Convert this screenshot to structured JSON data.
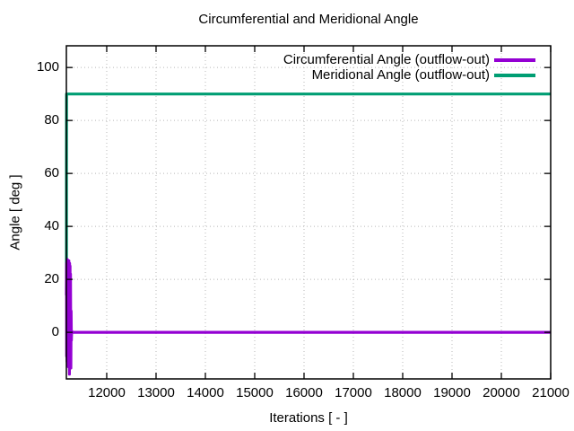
{
  "window": {
    "background": "#ffffff",
    "text_color": "#000000"
  },
  "chart_data": {
    "type": "line",
    "title": "Circumferential and Meridional Angle",
    "xlabel": "Iterations [ - ]",
    "ylabel": "Angle [ deg ]",
    "xlim": [
      11182,
      21000
    ],
    "ylim": [
      -17.6,
      108.2
    ],
    "xticks": [
      12000,
      13000,
      14000,
      15000,
      16000,
      17000,
      18000,
      19000,
      20000,
      21000
    ],
    "yticks": [
      0,
      20,
      40,
      60,
      80,
      100
    ],
    "grid": true,
    "grid_style": "dotted",
    "grid_color": "#b8b8b8",
    "border_color": "#000000",
    "legend_position": "top-right-inside",
    "series": [
      {
        "name": "Circumferential Angle (outflow-out)",
        "color": "#9400d3",
        "summary": "oscillates between about +27.5 and -15.8 deg during iterations ~11182-11290, then constant at 0 deg until 21000",
        "points": [
          [
            11182,
            14
          ],
          [
            11185,
            26
          ],
          [
            11188,
            -9
          ],
          [
            11192,
            27
          ],
          [
            11196,
            -11
          ],
          [
            11200,
            27.5
          ],
          [
            11204,
            -12
          ],
          [
            11208,
            27
          ],
          [
            11212,
            -12.5
          ],
          [
            11216,
            27
          ],
          [
            11220,
            -13
          ],
          [
            11224,
            26.5
          ],
          [
            11228,
            -12
          ],
          [
            11232,
            27
          ],
          [
            11236,
            -13
          ],
          [
            11240,
            26
          ],
          [
            11244,
            -15.8
          ],
          [
            11248,
            26
          ],
          [
            11252,
            -13
          ],
          [
            11256,
            25
          ],
          [
            11260,
            -12
          ],
          [
            11266,
            22
          ],
          [
            11272,
            -13.5
          ],
          [
            11278,
            8
          ],
          [
            11284,
            -3
          ],
          [
            11290,
            0.5
          ],
          [
            11300,
            0
          ],
          [
            21000,
            0
          ]
        ]
      },
      {
        "name": "Meridional Angle (outflow-out)",
        "color": "#009e73",
        "summary": "rises immediately from ~15 deg to 90 deg at iteration ~11184 and stays constant at 90 deg until 21000",
        "points": [
          [
            11183,
            14
          ],
          [
            11184,
            62
          ],
          [
            11186,
            90
          ],
          [
            11200,
            90
          ],
          [
            21000,
            90
          ]
        ]
      }
    ]
  }
}
